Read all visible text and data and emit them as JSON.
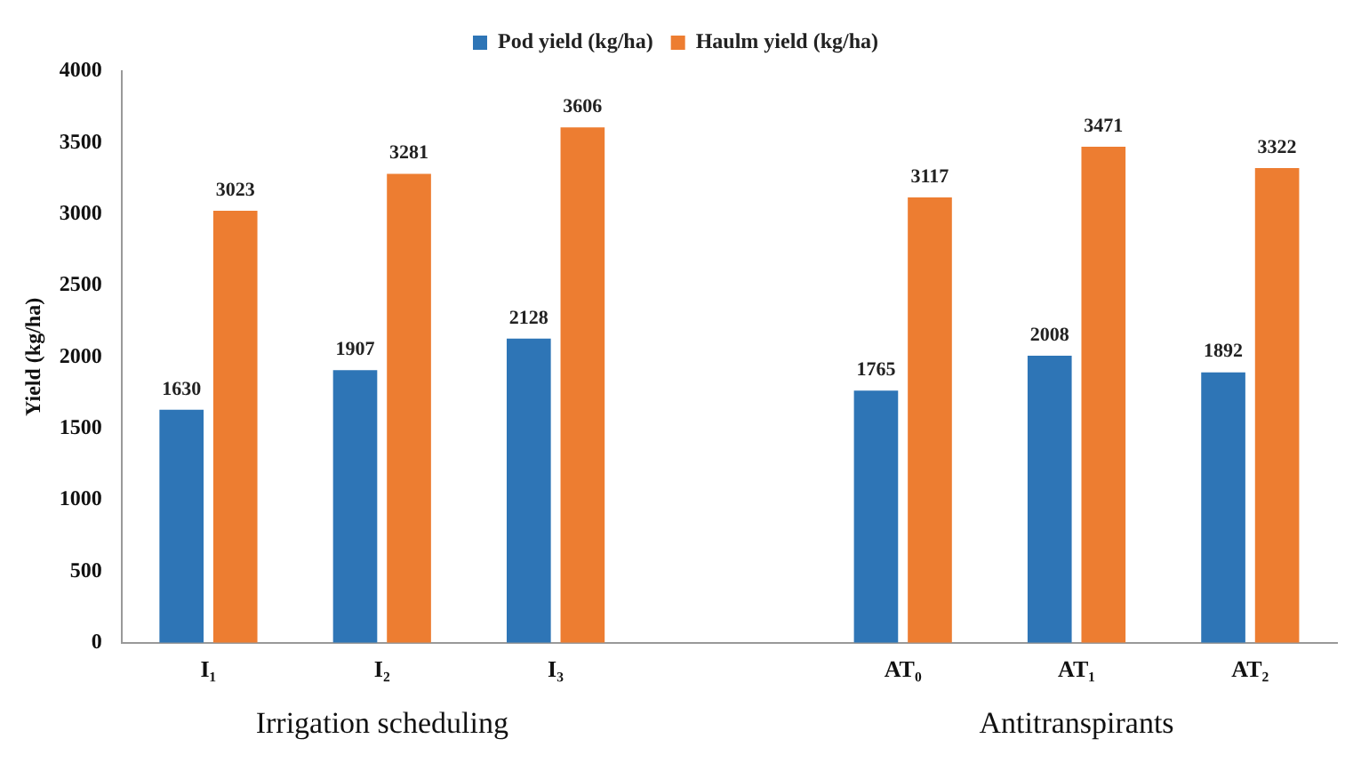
{
  "chart_data": {
    "type": "bar",
    "ylabel": "Yield (kg/ha)",
    "categories": [
      "I₁",
      "I₂",
      "I₃",
      null,
      "AT₀",
      "AT₁",
      "AT₂"
    ],
    "series": [
      {
        "name": "Pod yield (kg/ha)",
        "color": "#2e75b6",
        "values": [
          1630,
          1907,
          2128,
          null,
          1765,
          2008,
          1892
        ]
      },
      {
        "name": "Haulm yield (kg/ha)",
        "color": "#ed7d31",
        "values": [
          3023,
          3281,
          3606,
          null,
          3117,
          3471,
          3322
        ]
      }
    ],
    "ylim": [
      0,
      4000
    ],
    "yticks": [
      0,
      500,
      1000,
      1500,
      2000,
      2500,
      3000,
      3500,
      4000
    ],
    "data_labels": true,
    "legend": "top",
    "annotations": [
      "Irrigation scheduling",
      "Antitranspirants"
    ]
  }
}
